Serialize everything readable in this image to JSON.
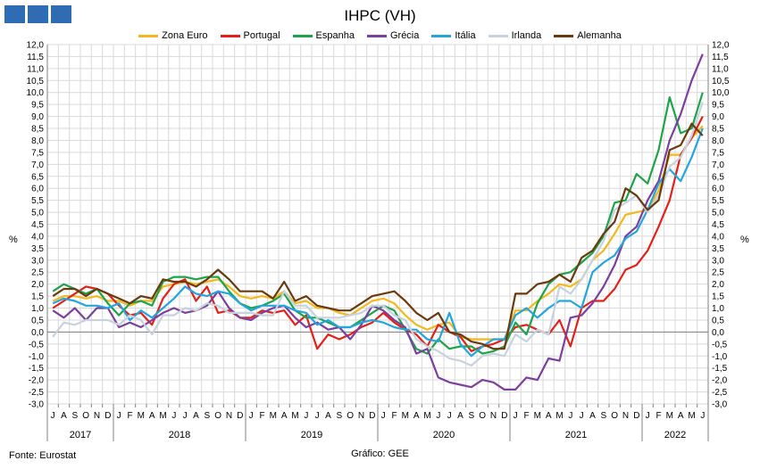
{
  "header": {
    "logo_colors": [
      "#2e6db3",
      "#2e6db3",
      "#2e6db3"
    ]
  },
  "footer": {
    "source": "Fonte: Eurostat",
    "credit": "Gráfico: GEE"
  },
  "chart_data": {
    "type": "line",
    "title": "IHPC (VH)",
    "ylabel_left": "%",
    "ylabel_right": "%",
    "ylim": [
      -3.0,
      12.0
    ],
    "ytick_step": 0.5,
    "grid": true,
    "legend_position": "top",
    "month_labels": [
      "J",
      "A",
      "S",
      "O",
      "N",
      "D",
      "J",
      "F",
      "M",
      "A",
      "M",
      "J",
      "J",
      "A",
      "S",
      "O",
      "N",
      "D",
      "J",
      "F",
      "M",
      "A",
      "M",
      "J",
      "J",
      "A",
      "S",
      "O",
      "N",
      "D",
      "J",
      "F",
      "M",
      "A",
      "M",
      "J",
      "J",
      "A",
      "S",
      "O",
      "N",
      "D",
      "J",
      "F",
      "M",
      "A",
      "M",
      "J",
      "J",
      "A",
      "S",
      "O",
      "N",
      "D",
      "J",
      "F",
      "M",
      "A",
      "M",
      "J"
    ],
    "year_labels": [
      {
        "label": "2017",
        "start": 0,
        "end": 5
      },
      {
        "label": "2018",
        "start": 6,
        "end": 17
      },
      {
        "label": "2019",
        "start": 18,
        "end": 29
      },
      {
        "label": "2020",
        "start": 30,
        "end": 41
      },
      {
        "label": "2021",
        "start": 42,
        "end": 53
      },
      {
        "label": "2022",
        "start": 54,
        "end": 59
      }
    ],
    "series": [
      {
        "name": "Zona Euro",
        "color": "#f2b81c",
        "values": [
          1.3,
          1.5,
          1.5,
          1.4,
          1.5,
          1.3,
          1.3,
          1.1,
          1.3,
          1.3,
          1.9,
          2.0,
          2.1,
          2.0,
          2.1,
          2.2,
          1.9,
          1.5,
          1.4,
          1.5,
          1.4,
          1.7,
          1.2,
          1.3,
          1.0,
          1.0,
          0.8,
          0.7,
          1.0,
          1.3,
          1.4,
          1.2,
          0.7,
          0.3,
          0.1,
          0.3,
          0.4,
          -0.2,
          -0.3,
          -0.3,
          -0.3,
          -0.3,
          0.9,
          0.9,
          1.3,
          1.6,
          2.0,
          1.9,
          2.2,
          3.0,
          3.4,
          4.1,
          4.9,
          5.0,
          5.1,
          5.9,
          7.4,
          7.4,
          8.1,
          8.6
        ]
      },
      {
        "name": "Portugal",
        "color": "#e32119",
        "values": [
          1.0,
          1.3,
          1.6,
          1.9,
          1.8,
          1.6,
          1.1,
          0.7,
          0.8,
          0.3,
          1.4,
          2.0,
          2.2,
          1.3,
          1.9,
          0.8,
          0.9,
          0.6,
          0.6,
          0.9,
          0.8,
          0.9,
          0.3,
          0.7,
          -0.7,
          -0.1,
          -0.3,
          -0.1,
          0.2,
          0.4,
          0.8,
          0.4,
          0.1,
          -0.1,
          -0.6,
          0.3,
          0.0,
          -0.2,
          -0.8,
          -0.6,
          -0.5,
          -0.3,
          0.2,
          0.3,
          0.1,
          -0.1,
          0.5,
          -0.6,
          1.0,
          1.3,
          1.3,
          1.8,
          2.6,
          2.8,
          3.4,
          4.4,
          5.5,
          7.4,
          8.1,
          9.0
        ]
      },
      {
        "name": "Espanha",
        "color": "#1fa34a",
        "values": [
          1.7,
          2.0,
          1.8,
          1.6,
          1.8,
          1.2,
          0.7,
          1.2,
          1.3,
          1.1,
          2.1,
          2.3,
          2.3,
          2.2,
          2.3,
          2.3,
          1.7,
          1.2,
          1.0,
          1.1,
          1.3,
          1.6,
          0.9,
          0.6,
          0.6,
          0.4,
          0.2,
          0.2,
          0.5,
          0.8,
          1.1,
          0.9,
          0.1,
          -0.7,
          -0.9,
          -0.3,
          -0.7,
          -0.6,
          -0.6,
          -0.9,
          -0.8,
          -0.6,
          0.4,
          -0.1,
          1.2,
          2.0,
          2.4,
          2.5,
          2.9,
          3.3,
          4.0,
          5.4,
          5.5,
          6.6,
          6.2,
          7.6,
          9.8,
          8.3,
          8.5,
          10.0
        ]
      },
      {
        "name": "Grécia",
        "color": "#7b3f9f",
        "values": [
          0.9,
          0.6,
          1.0,
          0.5,
          1.0,
          1.0,
          0.2,
          0.4,
          0.2,
          0.5,
          0.8,
          1.0,
          0.8,
          0.9,
          1.1,
          1.7,
          1.0,
          0.6,
          0.5,
          0.8,
          1.0,
          1.1,
          0.6,
          0.2,
          0.4,
          0.1,
          0.2,
          -0.3,
          0.3,
          1.1,
          0.9,
          0.5,
          0.2,
          -0.9,
          -0.7,
          -1.9,
          -2.1,
          -2.2,
          -2.3,
          -2.0,
          -2.1,
          -2.4,
          -2.4,
          -1.9,
          -2.0,
          -1.1,
          -1.2,
          0.6,
          0.7,
          1.2,
          1.9,
          2.8,
          4.0,
          4.4,
          5.5,
          6.3,
          8.0,
          9.1,
          10.5,
          11.6
        ]
      },
      {
        "name": "Itália",
        "color": "#23a6dd",
        "values": [
          1.2,
          1.4,
          1.3,
          1.1,
          1.1,
          1.0,
          1.2,
          0.5,
          0.9,
          0.6,
          1.0,
          1.4,
          1.9,
          1.6,
          1.5,
          1.7,
          1.6,
          1.2,
          0.9,
          1.1,
          1.1,
          1.1,
          0.9,
          0.8,
          0.3,
          0.5,
          0.2,
          0.2,
          0.4,
          0.5,
          0.4,
          0.2,
          0.1,
          0.1,
          -0.3,
          -0.4,
          0.8,
          -0.5,
          -1.0,
          -0.6,
          -0.3,
          -0.3,
          0.7,
          1.0,
          0.6,
          1.0,
          1.3,
          1.3,
          1.0,
          2.5,
          2.9,
          3.2,
          3.9,
          4.2,
          5.1,
          6.2,
          6.8,
          6.3,
          7.3,
          8.5
        ]
      },
      {
        "name": "Irlanda",
        "color": "#c7d2de",
        "values": [
          -0.2,
          0.4,
          0.3,
          0.5,
          0.5,
          0.5,
          0.3,
          0.7,
          0.5,
          -0.1,
          0.7,
          0.7,
          1.0,
          0.9,
          1.2,
          1.1,
          0.8,
          0.8,
          0.8,
          0.7,
          0.7,
          1.7,
          1.1,
          1.1,
          0.6,
          0.6,
          0.6,
          0.7,
          0.8,
          1.1,
          1.1,
          0.7,
          0.5,
          -0.3,
          -0.6,
          -0.8,
          -1.1,
          -1.2,
          -1.4,
          -1.0,
          -0.9,
          -1.0,
          -0.1,
          -0.4,
          0.1,
          -0.1,
          1.9,
          1.6,
          2.2,
          3.0,
          3.8,
          5.1,
          5.4,
          5.7,
          5.0,
          5.7,
          6.9,
          7.3,
          8.2,
          9.6
        ]
      },
      {
        "name": "Alemanha",
        "color": "#6a3a0e",
        "values": [
          1.5,
          1.8,
          1.8,
          1.5,
          1.8,
          1.6,
          1.4,
          1.2,
          1.5,
          1.4,
          2.2,
          2.1,
          2.1,
          1.9,
          2.2,
          2.6,
          2.2,
          1.7,
          1.7,
          1.7,
          1.4,
          2.1,
          1.3,
          1.5,
          1.1,
          1.0,
          0.9,
          0.9,
          1.2,
          1.5,
          1.6,
          1.7,
          1.3,
          0.8,
          0.5,
          0.8,
          0.0,
          -0.1,
          -0.4,
          -0.5,
          -0.7,
          -0.7,
          1.6,
          1.6,
          2.0,
          2.1,
          2.4,
          2.1,
          3.1,
          3.4,
          4.1,
          4.6,
          6.0,
          5.7,
          5.1,
          5.5,
          7.6,
          7.8,
          8.7,
          8.2
        ]
      }
    ]
  }
}
